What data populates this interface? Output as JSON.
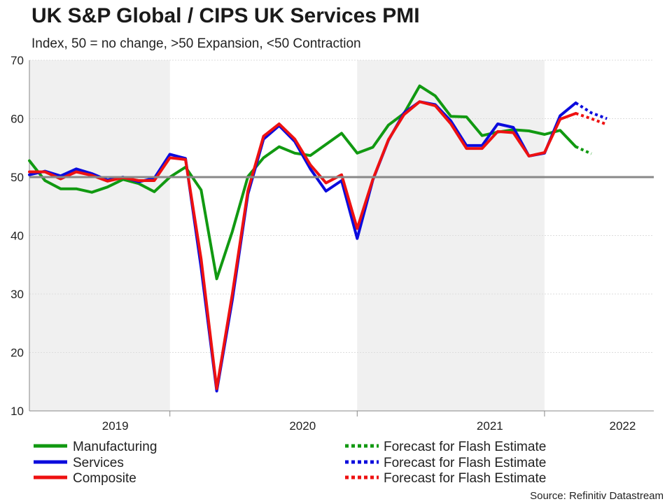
{
  "chart_data": {
    "type": "line",
    "title": "UK S&P Global / CIPS UK Services PMI",
    "subtitle": "Index, 50 = no change, >50 Expansion, <50 Contraction",
    "ylim": [
      10,
      70
    ],
    "yticks": [
      10,
      20,
      30,
      40,
      50,
      60,
      70
    ],
    "xlim": [
      0,
      40
    ],
    "reference_line": 50,
    "year_labels": [
      {
        "label": "2019",
        "x": 5.5
      },
      {
        "label": "2020",
        "x": 17.5
      },
      {
        "label": "2021",
        "x": 29.5
      },
      {
        "label": "2022",
        "x": 38.0
      }
    ],
    "year_boundaries": [
      9,
      21,
      33
    ],
    "shaded_ranges": [
      [
        0,
        9
      ],
      [
        21,
        33
      ]
    ],
    "series": [
      {
        "name": "Manufacturing",
        "color": "#119911",
        "style": "solid",
        "x": [
          0,
          1,
          2,
          3,
          4,
          5,
          6,
          7,
          8,
          9,
          10,
          11,
          12,
          13,
          14,
          15,
          16,
          17,
          18,
          19,
          20,
          21,
          22,
          23,
          24,
          25,
          26,
          27,
          28,
          29,
          30,
          31,
          32,
          33,
          34,
          35,
          36
        ],
        "values": [
          52.8,
          49.4,
          48.0,
          48.0,
          47.4,
          48.3,
          49.6,
          48.9,
          47.5,
          50.0,
          51.7,
          47.8,
          32.6,
          40.7,
          50.1,
          53.3,
          55.2,
          54.1,
          53.7,
          55.6,
          57.5,
          54.1,
          55.1,
          58.9,
          60.9,
          65.6,
          63.9,
          60.4,
          60.3,
          57.1,
          57.7,
          58.1,
          57.9,
          57.3,
          58.0,
          55.2,
          54.0
        ],
        "forecast_from": 35
      },
      {
        "name": "Services",
        "color": "#0b0bdd",
        "style": "solid",
        "x": [
          0,
          1,
          2,
          3,
          4,
          5,
          6,
          7,
          8,
          9,
          10,
          11,
          12,
          13,
          14,
          15,
          16,
          17,
          18,
          19,
          20,
          21,
          22,
          23,
          24,
          25,
          26,
          27,
          28,
          29,
          30,
          31,
          32,
          33,
          34,
          35,
          36,
          37
        ],
        "values": [
          50.4,
          51.0,
          50.2,
          51.4,
          50.6,
          49.5,
          50.0,
          49.2,
          49.8,
          53.9,
          53.2,
          34.5,
          13.4,
          29.0,
          47.1,
          56.5,
          58.8,
          56.1,
          51.4,
          47.6,
          49.4,
          39.5,
          49.5,
          56.3,
          61.0,
          62.9,
          62.4,
          59.6,
          55.4,
          55.4,
          59.1,
          58.5,
          53.6,
          54.1,
          60.5,
          62.7,
          61.0,
          60.0
        ],
        "forecast_from": 35
      },
      {
        "name": "Composite",
        "color": "#ee1111",
        "style": "solid",
        "x": [
          0,
          1,
          2,
          3,
          4,
          5,
          6,
          7,
          8,
          9,
          10,
          11,
          12,
          13,
          14,
          15,
          16,
          17,
          18,
          19,
          20,
          21,
          22,
          23,
          24,
          25,
          26,
          27,
          28,
          29,
          30,
          31,
          32,
          33,
          34,
          35,
          36,
          37
        ],
        "values": [
          50.9,
          50.9,
          49.7,
          50.9,
          50.3,
          49.3,
          49.9,
          49.4,
          49.4,
          53.3,
          53.0,
          36.0,
          13.8,
          30.0,
          47.7,
          57.0,
          59.1,
          56.5,
          52.1,
          49.0,
          50.4,
          41.2,
          49.6,
          56.4,
          60.7,
          62.9,
          62.2,
          59.1,
          54.9,
          54.9,
          57.8,
          57.6,
          53.6,
          54.2,
          59.9,
          60.9,
          60.0,
          59.0
        ],
        "forecast_from": 35
      }
    ],
    "legend": [
      {
        "label": "Manufacturing",
        "color": "#119911",
        "dash": false
      },
      {
        "label": "Services",
        "color": "#0b0bdd",
        "dash": false
      },
      {
        "label": "Composite",
        "color": "#ee1111",
        "dash": false
      },
      {
        "label": "Forecast for Flash Estimate",
        "color": "#119911",
        "dash": true
      },
      {
        "label": "Forecast for Flash Estimate",
        "color": "#0b0bdd",
        "dash": true
      },
      {
        "label": "Forecast for Flash Estimate",
        "color": "#ee1111",
        "dash": true
      }
    ],
    "source": "Source: Refinitiv Datastream"
  }
}
